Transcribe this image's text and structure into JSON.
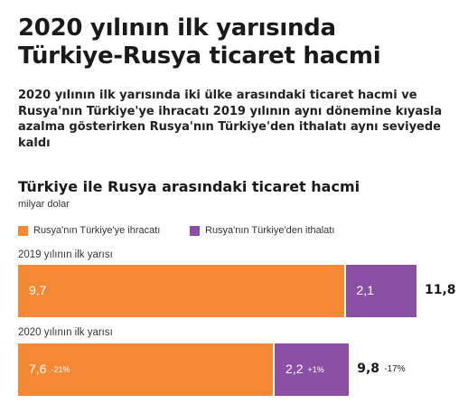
{
  "header": {
    "title_line1": "2020 yılının ilk yarısında",
    "title_line2": "Türkiye-Rusya ticaret hacmi",
    "subtitle": "2020 yılının ilk yarısında iki ülke arasındaki ticaret hacmi ve Rusya'nın Türkiye'ye ihracatı 2019 yılının aynı dönemine kıyasla azalma gösterirken Rusya'nın Türkiye'den ithalatı aynı seviyede kaldı"
  },
  "chart_data": {
    "type": "bar",
    "orientation": "horizontal",
    "stacked": true,
    "title": "Türkiye ile Rusya arasındaki ticaret hacmi",
    "unit": "milyar dolar",
    "legend_position": "top-left",
    "grid": false,
    "xlim": [
      0,
      11.8
    ],
    "categories": [
      "2019 yılının ilk yarısı",
      "2020 yılının ilk yarısı"
    ],
    "series": [
      {
        "name": "Rusya'nın Türkiye'ye ihracatı",
        "color": "#f58835",
        "values": [
          9.7,
          7.6
        ],
        "value_labels": [
          "9,7",
          "7,6"
        ],
        "change_labels": [
          "",
          "-21%"
        ]
      },
      {
        "name": "Rusya'nın Türkiye'den ithalatı",
        "color": "#8c4fa6",
        "values": [
          2.1,
          2.2
        ],
        "value_labels": [
          "2,1",
          "2,2"
        ],
        "change_labels": [
          "",
          "+1%"
        ]
      }
    ],
    "totals": [
      11.8,
      9.8
    ],
    "total_labels": [
      "11,8",
      "9,8"
    ],
    "total_change_labels": [
      "",
      "-17%"
    ]
  }
}
